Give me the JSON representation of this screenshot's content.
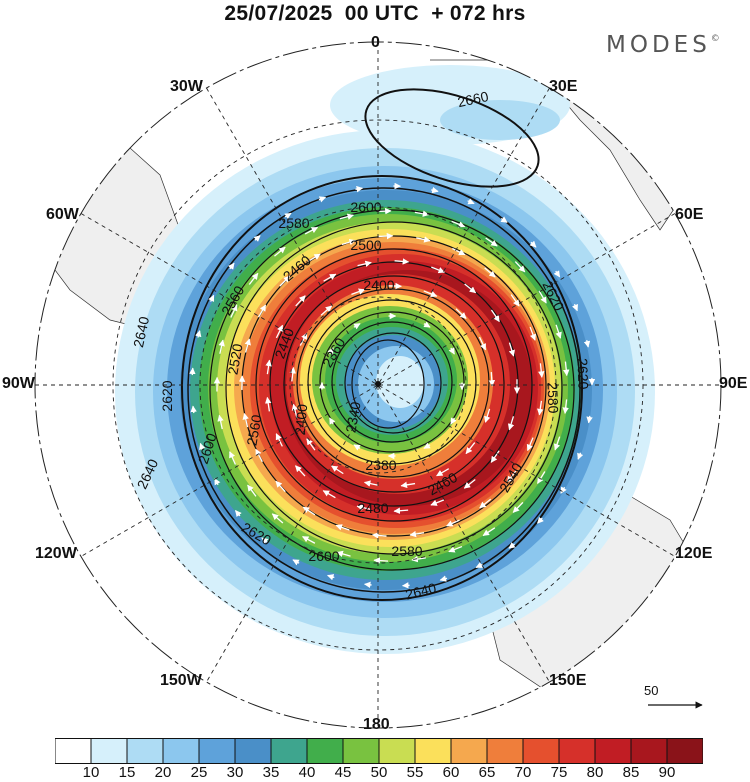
{
  "header": {
    "title": "25/07/2025  00 UTC  + 072 hrs",
    "brand": "MODES",
    "brand_mark": "©"
  },
  "map": {
    "projection": "polar-stereographic-south",
    "meridian_labels": [
      "0",
      "30E",
      "60E",
      "90E",
      "120E",
      "150E",
      "180",
      "150W",
      "120W",
      "90W",
      "60W",
      "30W"
    ],
    "contour_labels": [
      "2660",
      "2600",
      "2580",
      "2500",
      "2460",
      "2400",
      "2560",
      "2640",
      "2620",
      "2620",
      "2520",
      "2440",
      "2360",
      "2340",
      "2400",
      "2600",
      "2560",
      "2380",
      "2460",
      "2480",
      "2580",
      "2600",
      "2620",
      "2640",
      "2640",
      "2620",
      "2580",
      "2540"
    ],
    "fill_colors": {
      "land": "#efefef",
      "wind_10_15": "#d6f0fb",
      "wind_15_20": "#aedcf4",
      "wind_20_25": "#8cc7ee",
      "wind_25_30": "#5ea2da",
      "wind_30_35": "#4a8fc8",
      "wind_35_40": "#3ea58e",
      "wind_40_45": "#41ae4b",
      "wind_45_50": "#79c240",
      "wind_50_55": "#c9dd52",
      "wind_55_60": "#fbe05b",
      "wind_60_65": "#f5a84e",
      "wind_65_70": "#ef7e3b",
      "wind_70_75": "#e5502e",
      "wind_75_80": "#d6302a",
      "wind_80_85": "#c11d24",
      "wind_85_90": "#a8171e",
      "wind_90_plus": "#8a1319"
    }
  },
  "vector_reference": {
    "label": "50"
  },
  "colorbar": {
    "labels": [
      "10",
      "15",
      "20",
      "25",
      "30",
      "35",
      "40",
      "45",
      "50",
      "55",
      "60",
      "65",
      "70",
      "75",
      "80",
      "85",
      "90"
    ],
    "colors": [
      "#ffffff",
      "#d6f0fb",
      "#aedcf4",
      "#8cc7ee",
      "#5ea2da",
      "#4a8fc8",
      "#3ea58e",
      "#41ae4b",
      "#79c240",
      "#c9dd52",
      "#fbe05b",
      "#f5a84e",
      "#ef7e3b",
      "#e5502e",
      "#d6302a",
      "#c11d24",
      "#a8171e",
      "#8a1319"
    ]
  }
}
